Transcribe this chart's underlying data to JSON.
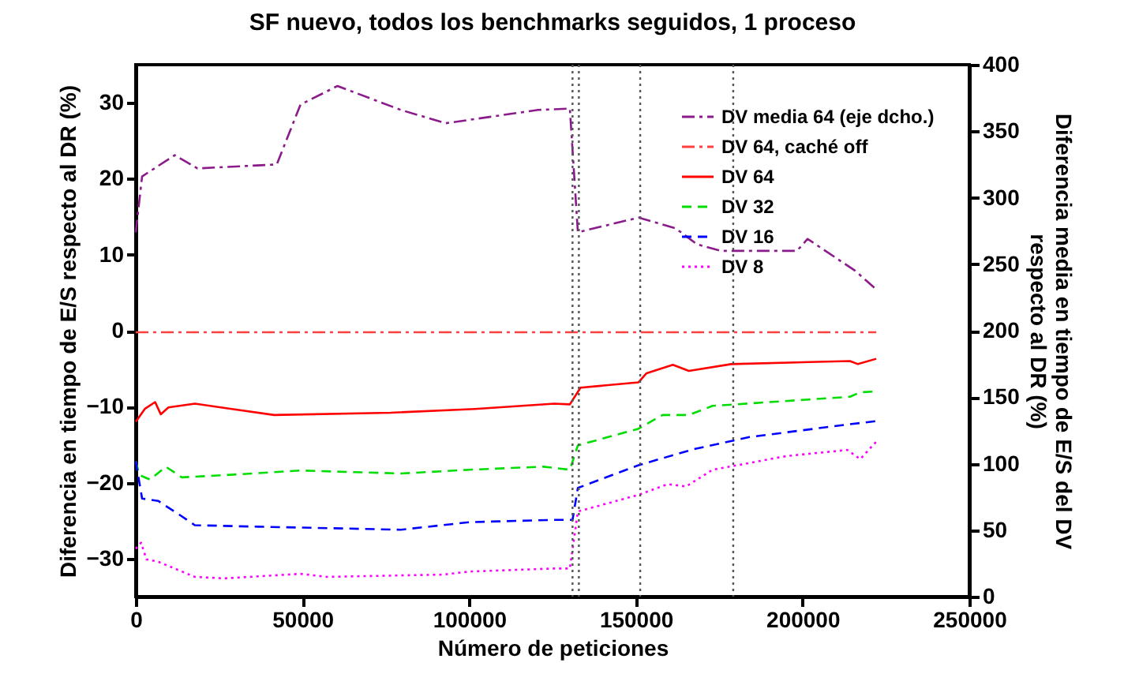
{
  "chart_data": {
    "type": "line",
    "title": "SF nuevo, todos los benchmarks seguidos, 1 proceso",
    "xlabel": "Número de peticiones",
    "ylabel": "Diferencia en tiempo de E/S respecto al DR (%)",
    "y2label": "Diferencia media en tiempo de E/S del DV\nrespecto al DR (%)",
    "xlim": [
      0,
      250000
    ],
    "xticks": [
      0,
      50000,
      100000,
      150000,
      200000,
      250000
    ],
    "ylim": [
      -35,
      35
    ],
    "yticks": [
      -30,
      -20,
      -10,
      0,
      10,
      20,
      30
    ],
    "y2lim": [
      0,
      400
    ],
    "y2ticks": [
      0,
      50,
      100,
      150,
      200,
      250,
      300,
      350,
      400
    ],
    "legend": "top right",
    "grid": false,
    "marker": "none",
    "series": [
      {
        "name": "DV media 64 (eje dcho.)",
        "color": "#8b1a8b",
        "axis": "y2",
        "line_style": "dashdot",
        "x": [
          0,
          1900,
          11700,
          18500,
          42300,
          49400,
          60500,
          79500,
          93000,
          120700,
          130200,
          132600,
          150800,
          161900,
          168300,
          175400,
          198300,
          201500,
          215800,
          222100
        ],
        "values": [
          274,
          316,
          332,
          322,
          325,
          370,
          384,
          366,
          356,
          366,
          367,
          274,
          285,
          277,
          265,
          260,
          260,
          269,
          245,
          231
        ]
      },
      {
        "name": "DV 64, caché off",
        "color": "#ff4040",
        "line_style": "dashdot",
        "x": [
          0,
          222100
        ],
        "values": [
          -0.2,
          -0.2
        ]
      },
      {
        "name": "DV 64",
        "color": "#ff0000",
        "line_style": "solid",
        "x": [
          0,
          2700,
          5800,
          7500,
          9800,
          17700,
          28800,
          41500,
          76400,
          101700,
          125500,
          130200,
          133400,
          150800,
          153200,
          161100,
          165900,
          178600,
          214200,
          216600,
          222100
        ],
        "values": [
          -12.0,
          -10.3,
          -9.4,
          -11.0,
          -10.1,
          -9.6,
          -10.3,
          -11.1,
          -10.8,
          -10.3,
          -9.6,
          -9.7,
          -7.5,
          -6.8,
          -5.6,
          -4.5,
          -5.3,
          -4.4,
          -4.0,
          -4.4,
          -3.7
        ]
      },
      {
        "name": "DV 32",
        "color": "#00dd00",
        "line_style": "dashed",
        "x": [
          0,
          1100,
          4300,
          9000,
          13800,
          27200,
          49400,
          79500,
          100100,
          122300,
          130200,
          132600,
          150800,
          158000,
          165900,
          173000,
          214200,
          217300,
          222100
        ],
        "values": [
          -17.2,
          -19.0,
          -19.6,
          -17.9,
          -19.3,
          -19.0,
          -18.4,
          -18.8,
          -18.3,
          -17.9,
          -18.3,
          -15.1,
          -12.9,
          -11.1,
          -11.1,
          -9.9,
          -8.7,
          -8.1,
          -8.0
        ]
      },
      {
        "name": "DV 16",
        "color": "#0000ff",
        "line_style": "dashed",
        "x": [
          0,
          1900,
          6700,
          13000,
          17700,
          36700,
          58900,
          79500,
          100100,
          125500,
          131000,
          132600,
          150800,
          167400,
          184100,
          212600,
          222100
        ],
        "values": [
          -17.2,
          -22.1,
          -22.4,
          -24.2,
          -25.6,
          -25.8,
          -26.0,
          -26.2,
          -25.2,
          -24.9,
          -24.9,
          -20.7,
          -17.7,
          -15.6,
          -14.0,
          -12.4,
          -11.9
        ]
      },
      {
        "name": "DV 8",
        "color": "#ff00ff",
        "line_style": "dotted",
        "x": [
          0,
          1600,
          3200,
          6700,
          17700,
          26500,
          49400,
          57400,
          92200,
          100100,
          125500,
          130200,
          132600,
          150800,
          159600,
          165100,
          173000,
          179300,
          195200,
          213400,
          217300,
          222100
        ],
        "values": [
          -28.7,
          -27.9,
          -30.1,
          -30.4,
          -32.4,
          -32.6,
          -32.0,
          -32.4,
          -32.1,
          -31.7,
          -31.3,
          -31.3,
          -23.8,
          -21.6,
          -20.2,
          -20.5,
          -18.3,
          -17.8,
          -16.5,
          -15.7,
          -16.9,
          -14.6
        ]
      }
    ],
    "ref_lines": [
      {
        "axis": "x",
        "value": 131000,
        "color": "#555555",
        "line_style": "dotted"
      },
      {
        "axis": "x",
        "value": 132900,
        "color": "#555555",
        "line_style": "dotted"
      },
      {
        "axis": "x",
        "value": 151300,
        "color": "#555555",
        "line_style": "dotted"
      },
      {
        "axis": "x",
        "value": 179200,
        "color": "#555555",
        "line_style": "dotted"
      }
    ]
  }
}
